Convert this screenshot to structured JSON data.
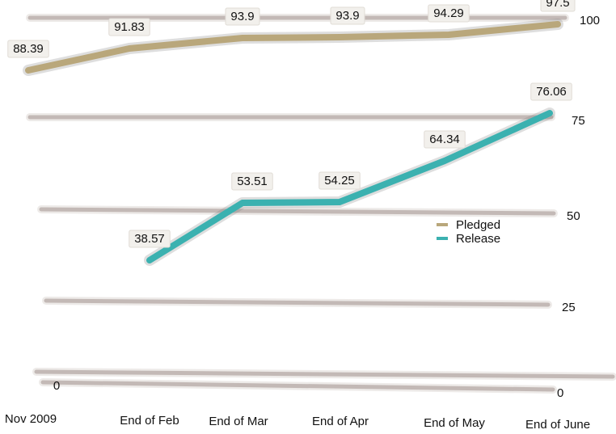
{
  "chart_data": {
    "type": "line",
    "title": "",
    "xlabel": "",
    "ylabel": "",
    "categories": [
      "Nov 2009",
      "End of Feb",
      "End of Mar",
      "End of Apr",
      "End of May",
      "End of June"
    ],
    "y_ticks": [
      "0",
      "25",
      "50",
      "75",
      "100"
    ],
    "ylim": [
      0,
      100
    ],
    "grid": true,
    "legend_position": "right",
    "series": [
      {
        "name": "Pledged",
        "color": "#b9a77b",
        "values": [
          88.39,
          91.83,
          93.9,
          93.9,
          94.29,
          97.5
        ],
        "labels": [
          "88.39",
          "91.83",
          "93.9",
          "93.9",
          "94.29",
          "97.5"
        ]
      },
      {
        "name": "Release",
        "color": "#3bb1b0",
        "values": [
          null,
          38.57,
          53.51,
          54.25,
          64.34,
          76.06
        ],
        "labels": [
          "",
          "38.57",
          "53.51",
          "54.25",
          "64.34",
          "76.06"
        ]
      }
    ],
    "extra_labels": [
      "0"
    ]
  }
}
